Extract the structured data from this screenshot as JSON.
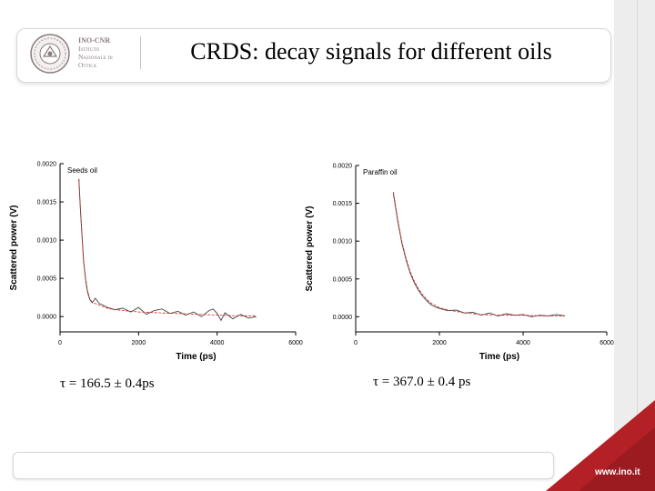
{
  "slide": {
    "title": "CRDS: decay signals for different oils",
    "institute": {
      "name": "INO-CNR",
      "lines": [
        "Istituto",
        "Nazionale di",
        "Ottica"
      ]
    },
    "website": "www.ino.it",
    "accent_color": "#b32025"
  },
  "tau_left": "τ = 166.5 ± 0.4ps",
  "tau_right": "τ = 367.0 ± 0.4 ps",
  "chart_data": [
    {
      "type": "line",
      "title": "Seeds oil",
      "xlabel": "Time (ps)",
      "ylabel": "Scattered power (V)",
      "xlim": [
        0,
        6000
      ],
      "ylim": [
        -0.0002,
        0.002
      ],
      "x_ticks": [
        "0",
        "2000",
        "4000",
        "6000"
      ],
      "y_ticks": [
        "0.0000",
        "0.0005",
        "0.0010",
        "0.0015",
        "0.0020"
      ],
      "series": [
        {
          "color": "#444444",
          "x": [
            480,
            520,
            560,
            600,
            650,
            700,
            760,
            820,
            900,
            1000,
            1100,
            1200,
            1400,
            1600,
            1800,
            2000,
            2200,
            2400,
            2600,
            2800,
            3000,
            3200,
            3400,
            3600,
            3800,
            3900,
            4000,
            4100,
            4200,
            4400,
            4600,
            4800,
            5000
          ],
          "y": [
            0.0018,
            0.0014,
            0.00105,
            0.00072,
            0.00048,
            0.00032,
            0.00022,
            0.00018,
            0.00024,
            0.00017,
            0.00015,
            0.00012,
            9e-05,
            0.00011,
            6e-05,
            0.00012,
            3e-05,
            8e-05,
            0.0001,
            4e-05,
            7e-05,
            2e-05,
            6e-05,
            0.0,
            8e-05,
            0.0001,
            4e-05,
            -5e-05,
            5e-05,
            -3e-05,
            3e-05,
            -2e-05,
            0.0
          ]
        },
        {
          "color": "#d02020",
          "x": [
            480,
            520,
            560,
            600,
            650,
            700,
            760,
            820,
            900,
            1000,
            1100,
            1200,
            1400,
            1600,
            1800,
            2000,
            2500,
            3000,
            3500,
            4000,
            4500,
            5000
          ],
          "y": [
            0.0018,
            0.0014,
            0.00106,
            0.00074,
            0.0005,
            0.00034,
            0.00023,
            0.00019,
            0.00017,
            0.00015,
            0.00013,
            0.00011,
            9e-05,
            8e-05,
            7e-05,
            6e-05,
            5e-05,
            4e-05,
            3e-05,
            2e-05,
            1e-05,
            1e-05
          ]
        }
      ]
    },
    {
      "type": "line",
      "title": "Paraffin oil",
      "xlabel": "Time (ps)",
      "ylabel": "Scattered power (V)",
      "xlim": [
        0,
        6000
      ],
      "ylim": [
        -0.0002,
        0.002
      ],
      "x_ticks": [
        "0",
        "2000",
        "4000",
        "6000"
      ],
      "y_ticks": [
        "0.0000",
        "0.0005",
        "0.0010",
        "0.0015",
        "0.0020"
      ],
      "series": [
        {
          "color": "#444444",
          "x": [
            900,
            1000,
            1100,
            1200,
            1300,
            1400,
            1500,
            1600,
            1700,
            1800,
            1900,
            2000,
            2200,
            2400,
            2600,
            2800,
            3000,
            3200,
            3400,
            3600,
            3800,
            4000,
            4200,
            4400,
            4600,
            4800,
            5000
          ],
          "y": [
            0.00163,
            0.00128,
            0.00098,
            0.00076,
            0.00058,
            0.00045,
            0.00035,
            0.00027,
            0.00021,
            0.00016,
            0.00013,
            0.00011,
            8e-05,
            9e-05,
            5e-05,
            6e-05,
            2e-05,
            5e-05,
            1e-05,
            4e-05,
            2e-05,
            3e-05,
            0.0,
            2e-05,
            1e-05,
            3e-05,
            1e-05
          ]
        },
        {
          "color": "#d02020",
          "x": [
            900,
            1000,
            1100,
            1200,
            1300,
            1400,
            1500,
            1600,
            1700,
            1800,
            1900,
            2000,
            2200,
            2400,
            2600,
            2800,
            3000,
            3500,
            4000,
            4500,
            5000
          ],
          "y": [
            0.00165,
            0.0013,
            0.001,
            0.00078,
            0.0006,
            0.00047,
            0.00037,
            0.00029,
            0.00023,
            0.00018,
            0.00015,
            0.00012,
            9e-05,
            7e-05,
            5e-05,
            4e-05,
            3e-05,
            2e-05,
            2e-05,
            1e-05,
            1e-05
          ]
        }
      ]
    }
  ]
}
